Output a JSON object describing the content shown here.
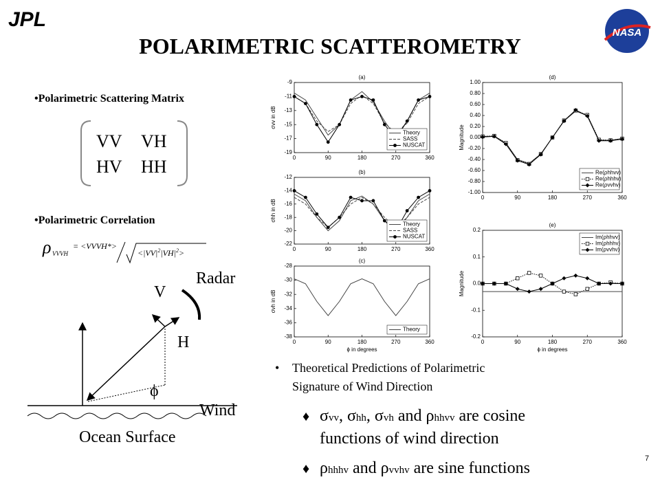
{
  "header": {
    "logo_left": "JPL",
    "title": "POLARIMETRIC SCATTEROMETRY",
    "logo_right": "NASA"
  },
  "left": {
    "bullet1": "•Polarimetric Scattering Matrix",
    "matrix": [
      [
        "VV",
        "VH"
      ],
      [
        "HV",
        "HH"
      ]
    ],
    "bullet2": "•Polarimetric Correlation",
    "formula": {
      "rho": "ρ",
      "sub": "VVVH",
      "numerator": "= <VVVH*>",
      "denominator": [
        "<|VV|",
        "2",
        "|VH|",
        "2",
        ">"
      ]
    },
    "diagram": {
      "radar": "Radar",
      "v": "V",
      "h": "H",
      "phi": "ϕ",
      "wind": "Wind",
      "surface": "Ocean Surface"
    }
  },
  "chart_data": [
    {
      "type": "line",
      "label": "(a)",
      "ylabel": "σvv in dB",
      "x": [
        0,
        30,
        60,
        90,
        120,
        150,
        180,
        210,
        240,
        270,
        300,
        330,
        360
      ],
      "xlim": [
        0,
        360
      ],
      "xticks": [
        0,
        90,
        180,
        270,
        360
      ],
      "ylim": [
        -19,
        -9
      ],
      "yticks": [
        -9,
        -11,
        -13,
        -15,
        -17,
        -19
      ],
      "legend": "lower right",
      "series": [
        {
          "name": "Theory",
          "color": "#444444",
          "style": "solid",
          "values": [
            -10.5,
            -11.5,
            -14,
            -16.5,
            -15,
            -11.5,
            -10.3,
            -11.8,
            -14.5,
            -16.8,
            -14.5,
            -11.5,
            -10.5
          ]
        },
        {
          "name": "SASS",
          "color": "#444444",
          "style": "dashed",
          "values": [
            -11,
            -12,
            -14.5,
            -16,
            -15,
            -12,
            -10.8,
            -12,
            -14.8,
            -16.2,
            -14.8,
            -12,
            -11
          ]
        },
        {
          "name": "NUSCAT",
          "color": "#000000",
          "style": "solid",
          "marker": "circle",
          "values": [
            -11,
            -12,
            -15,
            -17.5,
            -15,
            -11.5,
            -11,
            -11.5,
            -15,
            -17,
            -14.5,
            -11.5,
            -11
          ]
        }
      ]
    },
    {
      "type": "line",
      "label": "(b)",
      "ylabel": "σhh in dB",
      "x": [
        0,
        30,
        60,
        90,
        120,
        150,
        180,
        210,
        240,
        270,
        300,
        330,
        360
      ],
      "xlim": [
        0,
        360
      ],
      "xticks": [
        0,
        90,
        180,
        270,
        360
      ],
      "ylim": [
        -22,
        -12
      ],
      "yticks": [
        -12,
        -14,
        -16,
        -18,
        -20,
        -22
      ],
      "legend": "lower right",
      "series": [
        {
          "name": "Theory",
          "color": "#444444",
          "style": "solid",
          "values": [
            -14.5,
            -15.5,
            -18,
            -20,
            -18.5,
            -15.5,
            -14.8,
            -16,
            -18.5,
            -20.2,
            -18,
            -15.5,
            -14.5
          ]
        },
        {
          "name": "SASS",
          "color": "#444444",
          "style": "dashed",
          "values": [
            -15,
            -16,
            -18,
            -19.5,
            -18,
            -16,
            -15,
            -16,
            -18,
            -19.6,
            -18,
            -16,
            -15
          ]
        },
        {
          "name": "NUSCAT",
          "color": "#000000",
          "style": "solid",
          "marker": "circle",
          "values": [
            -14,
            -15,
            -17.5,
            -19.5,
            -18,
            -15,
            -15.5,
            -15.5,
            -18.5,
            -20,
            -17,
            -15,
            -14
          ]
        }
      ]
    },
    {
      "type": "line",
      "label": "(c)",
      "ylabel": "σvh in dB",
      "xlabel": "ϕ in degrees",
      "x": [
        0,
        30,
        60,
        90,
        120,
        150,
        180,
        210,
        240,
        270,
        300,
        330,
        360
      ],
      "xlim": [
        0,
        360
      ],
      "xticks": [
        0,
        90,
        180,
        270,
        360
      ],
      "ylim": [
        -38,
        -28
      ],
      "yticks": [
        -28,
        -30,
        -32,
        -34,
        -36,
        -38
      ],
      "legend": "lower right",
      "series": [
        {
          "name": "Theory",
          "color": "#444444",
          "style": "solid",
          "values": [
            -29.8,
            -30.5,
            -33,
            -35,
            -33,
            -30.5,
            -29.8,
            -30.5,
            -33,
            -35,
            -33,
            -30.5,
            -29.8
          ]
        }
      ]
    },
    {
      "type": "line",
      "label": "(d)",
      "ylabel": "Magnitude",
      "x": [
        0,
        30,
        60,
        90,
        120,
        150,
        180,
        210,
        240,
        270,
        300,
        330,
        360
      ],
      "xlim": [
        0,
        360
      ],
      "xticks": [
        0,
        90,
        180,
        270,
        360
      ],
      "ylim": [
        -1,
        1
      ],
      "yticks": [
        {
          "value": 1,
          "label": "1.00"
        },
        {
          "value": 0.8,
          "label": "0.80"
        },
        {
          "value": 0.6,
          "label": "0.60"
        },
        {
          "value": 0.4,
          "label": "0.40"
        },
        {
          "value": 0.2,
          "label": "0.20"
        },
        {
          "value": 0,
          "label": "0.00"
        },
        {
          "value": -0.2,
          "label": "-0.20"
        },
        {
          "value": -0.4,
          "label": "-0.40"
        },
        {
          "value": -0.6,
          "label": "-0.60"
        },
        {
          "value": -0.8,
          "label": "-0.80"
        },
        {
          "value": -1,
          "label": "-1.00"
        }
      ],
      "legend": "lower right",
      "series": [
        {
          "name": "Re(ρhhvv)",
          "color": "#444444",
          "style": "solid",
          "values": [
            0.02,
            0.02,
            -0.1,
            -0.4,
            -0.47,
            -0.3,
            0,
            0.3,
            0.48,
            0.4,
            -0.05,
            -0.05,
            -0.02
          ]
        },
        {
          "name": "Re(ρhhhv)",
          "color": "#000000",
          "style": "dotted",
          "marker": "square",
          "values": [
            0.02,
            0.03,
            -0.1,
            -0.41,
            -0.48,
            -0.3,
            0,
            0.31,
            0.49,
            0.41,
            -0.04,
            -0.05,
            -0.02
          ]
        },
        {
          "name": "Re(ρvvhv)",
          "color": "#000000",
          "style": "solid",
          "marker": "diamond",
          "values": [
            0.01,
            0.02,
            -0.12,
            -0.42,
            -0.49,
            -0.31,
            0,
            0.3,
            0.5,
            0.39,
            -0.06,
            -0.06,
            -0.03
          ]
        }
      ]
    },
    {
      "type": "line",
      "label": "(e)",
      "ylabel": "Magnitude",
      "xlabel": "ϕ in degrees",
      "x": [
        0,
        30,
        60,
        90,
        120,
        150,
        180,
        210,
        240,
        270,
        300,
        330,
        360
      ],
      "xlim": [
        0,
        360
      ],
      "xticks": [
        0,
        90,
        180,
        270,
        360
      ],
      "ylim": [
        -0.2,
        0.2
      ],
      "yticks": [
        0.2,
        0.1,
        {
          "value": 0,
          "label": "0.0"
        },
        -0.1,
        -0.2
      ],
      "legend": "upper right",
      "series": [
        {
          "name": "Im(ρhhvv)",
          "color": "#444444",
          "style": "solid",
          "values": [
            -0.03,
            -0.03,
            -0.03,
            -0.03,
            -0.03,
            -0.03,
            -0.03,
            -0.03,
            -0.03,
            -0.03,
            -0.03,
            -0.03,
            -0.03
          ]
        },
        {
          "name": "Im(ρhhhv)",
          "color": "#000000",
          "style": "dotted",
          "marker": "square",
          "values": [
            0,
            0,
            0,
            0.02,
            0.04,
            0.03,
            0,
            -0.03,
            -0.04,
            -0.02,
            0,
            0.005,
            0
          ]
        },
        {
          "name": "Im(ρvvhv)",
          "color": "#000000",
          "style": "solid",
          "marker": "diamond",
          "values": [
            0,
            0,
            0,
            -0.02,
            -0.03,
            -0.02,
            0,
            0.02,
            0.03,
            0.02,
            0,
            0,
            0
          ]
        }
      ]
    }
  ],
  "right": {
    "bullet": "•",
    "lines": [
      "Theoretical Predictions of Polarimetric",
      "Signature of Wind Direction"
    ],
    "diamond": "♦",
    "subbullets": [
      [
        [
          {
            "text": "σ"
          },
          {
            "text": "vv",
            "small": true
          },
          {
            "text": ", "
          },
          {
            "text": "σ"
          },
          {
            "text": "hh",
            "small": true
          },
          {
            "text": ", "
          },
          {
            "text": "σ"
          },
          {
            "text": "vh",
            "small": true
          },
          {
            "text": " and "
          },
          {
            "text": "ρ"
          },
          {
            "text": "hhvv",
            "small": true
          },
          {
            "text": " are cosine"
          }
        ],
        [
          {
            "text": "functions of wind direction"
          }
        ]
      ],
      [
        [
          {
            "text": "ρ"
          },
          {
            "text": "hhhv",
            "small": true
          },
          {
            "text": " and "
          },
          {
            "text": "ρ"
          },
          {
            "text": "vvhv",
            "small": true
          },
          {
            "text": " are sine functions"
          }
        ]
      ]
    ]
  },
  "page_number": "7"
}
